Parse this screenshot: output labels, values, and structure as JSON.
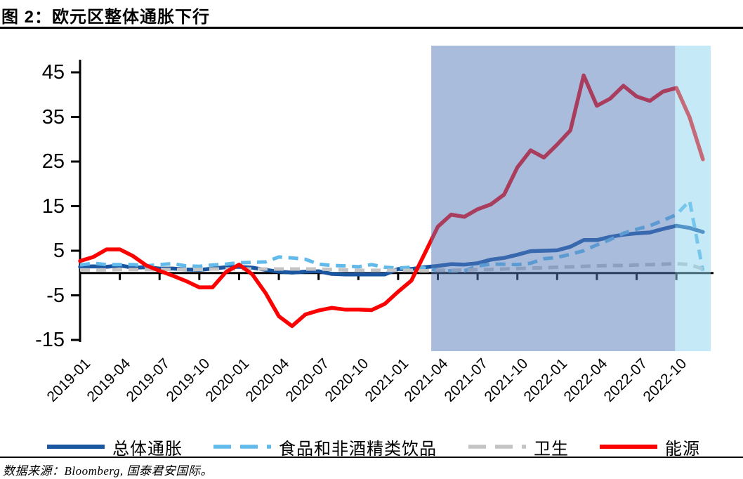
{
  "title": "图 2：欧元区整体通胀下行",
  "source_note": "数据来源：Bloomberg, 国泰君安国际。",
  "chart_data": {
    "type": "line",
    "title": "欧元区整体通胀下行",
    "x_start": "2019-01",
    "x_frequency": "monthly",
    "x_tick_labels": [
      "2019-01",
      "2019-04",
      "2019-07",
      "2019-10",
      "2020-01",
      "2020-04",
      "2020-07",
      "2020-10",
      "2021-01",
      "2021-04",
      "2021-07",
      "2021-10",
      "2022-01",
      "2022-04",
      "2022-07",
      "2022-10"
    ],
    "y_ticks": [
      45,
      35,
      25,
      15,
      5,
      -5,
      -15
    ],
    "ylim": [
      -16,
      50
    ],
    "unit": "%, y/y",
    "grid": false,
    "legend_position": "bottom",
    "axis_color": "#000000",
    "series": [
      {
        "id": "headline",
        "label": "总体通胀",
        "color": "#1A57A0",
        "line_style": "solid",
        "values": [
          1.4,
          1.5,
          1.4,
          1.7,
          1.2,
          1.3,
          1.0,
          1.0,
          0.8,
          0.7,
          1.0,
          1.3,
          1.4,
          1.2,
          0.7,
          0.3,
          0.1,
          0.3,
          0.4,
          -0.2,
          -0.3,
          -0.3,
          -0.3,
          -0.3,
          0.9,
          0.9,
          1.3,
          1.6,
          2.0,
          1.9,
          2.2,
          3.0,
          3.4,
          4.1,
          4.9,
          5.0,
          5.1,
          5.9,
          7.4,
          7.4,
          8.1,
          8.6,
          8.9,
          9.1,
          9.9,
          10.6,
          10.1,
          9.2
        ]
      },
      {
        "id": "food-nonalcoholic-beverages",
        "label": "食品和非酒精类饮品",
        "color": "#62BAEB",
        "line_style": "dashed",
        "values": [
          1.8,
          2.2,
          1.9,
          1.9,
          1.9,
          1.6,
          1.9,
          2.1,
          1.6,
          1.5,
          1.8,
          2.0,
          2.3,
          2.4,
          2.5,
          3.6,
          3.4,
          3.1,
          2.0,
          1.7,
          1.6,
          1.4,
          1.9,
          1.3,
          1.1,
          1.3,
          1.1,
          0.6,
          0.5,
          0.5,
          1.6,
          2.0,
          2.0,
          1.9,
          2.2,
          3.2,
          3.5,
          4.2,
          5.0,
          6.3,
          7.5,
          8.9,
          9.8,
          10.6,
          11.8,
          13.1,
          16.2,
          0.5
        ]
      },
      {
        "id": "health",
        "label": "卫生",
        "color": "#C4C4C4",
        "line_style": "dashed",
        "values": [
          0.7,
          0.7,
          0.7,
          0.8,
          0.8,
          0.8,
          0.8,
          0.8,
          0.8,
          0.8,
          0.9,
          0.9,
          0.9,
          0.9,
          0.9,
          0.9,
          0.9,
          0.9,
          0.9,
          0.8,
          0.7,
          0.6,
          0.6,
          0.6,
          0.6,
          0.6,
          0.5,
          0.6,
          0.6,
          0.7,
          0.8,
          0.8,
          0.9,
          1.0,
          1.1,
          1.2,
          1.3,
          1.4,
          1.5,
          1.6,
          1.7,
          1.7,
          1.8,
          1.9,
          2.0,
          2.1,
          1.9,
          0.9
        ]
      },
      {
        "id": "energy",
        "label": "能源",
        "color": "#FC0101",
        "line_style": "solid",
        "values": [
          2.7,
          3.6,
          5.3,
          5.3,
          3.8,
          1.7,
          0.5,
          -0.6,
          -1.8,
          -3.2,
          -3.2,
          0.2,
          1.9,
          -0.3,
          -4.5,
          -9.7,
          -11.9,
          -9.3,
          -8.4,
          -7.8,
          -8.2,
          -8.2,
          -8.3,
          -6.9,
          -4.2,
          -1.7,
          4.3,
          10.4,
          13.1,
          12.6,
          14.3,
          15.4,
          17.6,
          23.7,
          27.5,
          25.9,
          28.8,
          32.0,
          44.3,
          37.5,
          39.1,
          42.0,
          39.6,
          38.6,
          40.7,
          41.5,
          34.9,
          25.5
        ]
      }
    ],
    "highlight_regions": [
      {
        "id": "blue-shaded-period",
        "from_month_index": 26.5,
        "to_month_index": 44.9,
        "fill": "rgba(85,121,185,0.50)"
      },
      {
        "id": "cyan-shaded-period",
        "from_month_index": 44.9,
        "to_month_index": 47.6,
        "fill": "rgba(139,211,239,0.50)"
      }
    ]
  }
}
